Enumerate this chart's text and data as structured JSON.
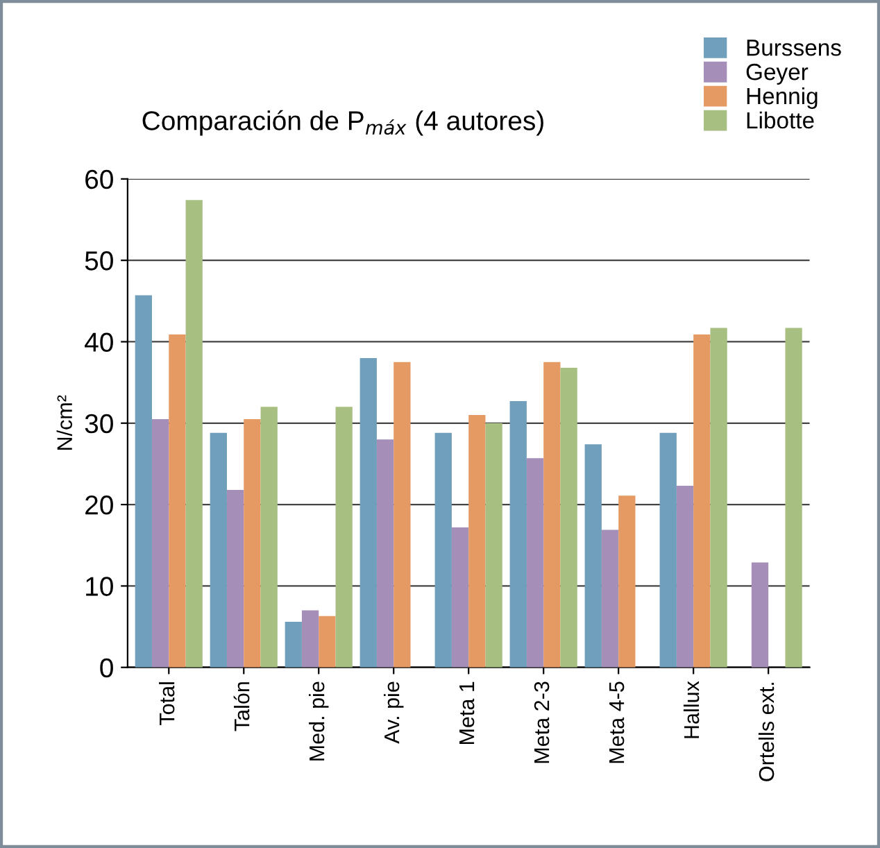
{
  "chart_data": {
    "type": "bar",
    "title": "Comparación de P$_{máx}$ (4 autores)",
    "ylabel": "N/cm²",
    "categories": [
      "Total",
      "Talón",
      "Med. pie",
      "Av. pie",
      "Meta 1",
      "Meta 2-3",
      "Meta 4-5",
      "Hallux",
      "Ortells ext."
    ],
    "series": [
      {
        "name": "Burssens",
        "color": "#6f9fba",
        "values": [
          45.7,
          28.8,
          5.6,
          38,
          28.8,
          32.7,
          27.4,
          28.8,
          null
        ]
      },
      {
        "name": "Geyer",
        "color": "#a58fb8",
        "values": [
          30.5,
          21.8,
          7.0,
          28,
          17.2,
          25.7,
          16.9,
          22.3,
          12.9
        ]
      },
      {
        "name": "Hennig",
        "color": "#e59a63",
        "values": [
          40.9,
          30.5,
          6.3,
          37.5,
          31,
          37.5,
          21.1,
          40.9,
          null
        ]
      },
      {
        "name": "Libotte",
        "color": "#a8bf82",
        "values": [
          57.4,
          32,
          32,
          null,
          30,
          36.8,
          null,
          41.7,
          41.7
        ]
      }
    ],
    "ylim": [
      0,
      60
    ],
    "yticks": [
      0,
      10,
      20,
      30,
      40,
      50,
      60
    ],
    "grid": "y",
    "legend": "top right"
  }
}
